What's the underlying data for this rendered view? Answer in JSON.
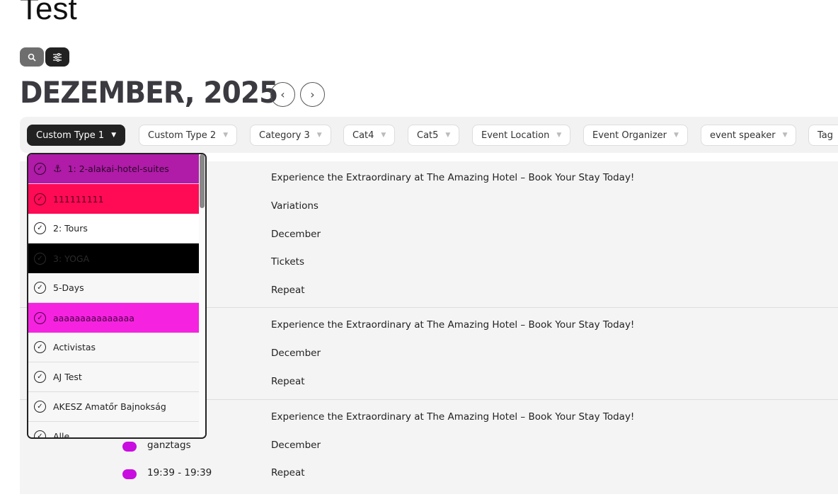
{
  "page": {
    "title": "Test"
  },
  "toolbar": {
    "search_icon": "search-icon",
    "filter_icon": "sliders-icon"
  },
  "calendar": {
    "month": "DEZEMBER, 2025",
    "prev_icon": "chevron-left-icon",
    "next_icon": "chevron-right-icon"
  },
  "filters": [
    {
      "label": "Custom Type 1",
      "active": true
    },
    {
      "label": "Custom Type 2"
    },
    {
      "label": "Category 3"
    },
    {
      "label": "Cat4"
    },
    {
      "label": "Cat5"
    },
    {
      "label": "Event Location"
    },
    {
      "label": "Event Organizer"
    },
    {
      "label": "event speaker"
    },
    {
      "label": "Tag"
    }
  ],
  "dropdown": {
    "items": [
      {
        "label": "1: 2-alakai-hotel-suites",
        "bg": "#b01ba8",
        "icon": "anchor-icon"
      },
      {
        "label": "111111111",
        "bg": "#ff0a55"
      },
      {
        "label": "2: Tours",
        "bg": "#ffffff"
      },
      {
        "label": "3: YOGA",
        "bg": "#000000"
      },
      {
        "label": "5-Days"
      },
      {
        "label": "aaaaaaaaaaaaaaa",
        "bg": "#f523e0"
      },
      {
        "label": "Activistas"
      },
      {
        "label": "AJ Test"
      },
      {
        "label": "AKESZ Amatőr Bajnokság"
      },
      {
        "label": "Alle"
      }
    ]
  },
  "events": [
    {
      "lines": [
        "Experience the Extraordinary at The Amazing Hotel – Book Your Stay Today!",
        "Variations",
        "December",
        "Tickets",
        "Repeat"
      ]
    },
    {
      "lines": [
        "Experience the Extraordinary at The Amazing Hotel – Book Your Stay Today!",
        "December",
        "Repeat"
      ]
    },
    {
      "lines": [
        "Experience the Extraordinary at The Amazing Hotel – Book Your Stay Today!",
        "December",
        "Repeat"
      ],
      "times": [
        "ganztags",
        "19:39 - 19:39"
      ],
      "color": "#c90de0"
    }
  ]
}
